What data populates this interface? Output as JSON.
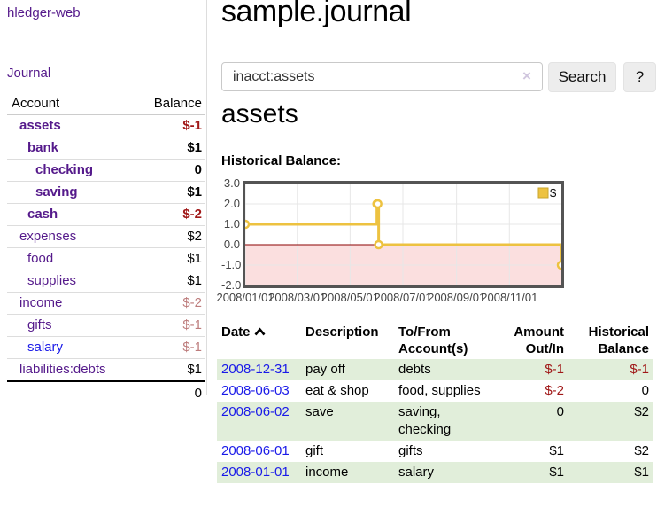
{
  "sidebar": {
    "app_title": "hledger-web",
    "journal_label": "Journal",
    "accounts_table": {
      "headers": {
        "account": "Account",
        "balance": "Balance"
      },
      "rows": [
        {
          "name": "assets",
          "indent": 1,
          "bold": true,
          "blue": false,
          "balance": "$-1",
          "balance_style": "neg-strong"
        },
        {
          "name": "bank",
          "indent": 2,
          "bold": true,
          "blue": false,
          "balance": "$1",
          "balance_style": "pos"
        },
        {
          "name": "checking",
          "indent": 3,
          "bold": true,
          "blue": false,
          "balance": "0",
          "balance_style": "pos"
        },
        {
          "name": "saving",
          "indent": 3,
          "bold": true,
          "blue": false,
          "balance": "$1",
          "balance_style": "pos"
        },
        {
          "name": "cash",
          "indent": 2,
          "bold": true,
          "blue": false,
          "balance": "$-2",
          "balance_style": "neg-strong"
        },
        {
          "name": "expenses",
          "indent": 1,
          "bold": false,
          "blue": false,
          "balance": "$2",
          "balance_style": "pos"
        },
        {
          "name": "food",
          "indent": 2,
          "bold": false,
          "blue": false,
          "balance": "$1",
          "balance_style": "pos"
        },
        {
          "name": "supplies",
          "indent": 2,
          "bold": false,
          "blue": false,
          "balance": "$1",
          "balance_style": "pos"
        },
        {
          "name": "income",
          "indent": 1,
          "bold": false,
          "blue": false,
          "balance": "$-2",
          "balance_style": "neg-soft"
        },
        {
          "name": "gifts",
          "indent": 2,
          "bold": false,
          "blue": false,
          "balance": "$-1",
          "balance_style": "neg-soft"
        },
        {
          "name": "salary",
          "indent": 2,
          "bold": false,
          "blue": true,
          "balance": "$-1",
          "balance_style": "neg-soft"
        },
        {
          "name": "liabilities:debts",
          "indent": 1,
          "bold": false,
          "blue": false,
          "balance": "$1",
          "balance_style": "pos"
        }
      ],
      "total": "0"
    }
  },
  "header": {
    "title": "sample.journal"
  },
  "search": {
    "value": "inacct:assets",
    "clear_glyph": "×",
    "button_label": "Search",
    "help_label": "?"
  },
  "account_page": {
    "heading": "assets",
    "chart_label": "Historical Balance:"
  },
  "chart_data": {
    "type": "line",
    "step": true,
    "title": "Historical Balance",
    "x": [
      "2008-01-01",
      "2008-06-01",
      "2008-06-02",
      "2008-06-03",
      "2008-12-31"
    ],
    "series": [
      {
        "name": "$",
        "values": [
          1,
          2,
          2,
          0,
          -1
        ]
      }
    ],
    "ylim": [
      -2,
      3
    ],
    "yticks": [
      "3.0",
      "2.0",
      "1.0",
      "0.0",
      "-1.0",
      "-2.0"
    ],
    "ytick_values": [
      3,
      2,
      1,
      0,
      -1,
      -2
    ],
    "xticks": [
      "2008/01/01",
      "2008/03/01",
      "2008/05/01",
      "2008/07/01",
      "2008/09/01",
      "2008/11/01"
    ],
    "xlim": [
      "2008-01-01",
      "2008-12-31"
    ],
    "grid": true,
    "legend_position": "top-right",
    "legend_label": "$",
    "colors": {
      "line": "#edc240",
      "marker_fill": "#ffffff",
      "negative_region_fill": "#fbdfdf",
      "zero_line": "#8b0000",
      "grid": "#e7e7e7",
      "border": "#545454"
    }
  },
  "register_table": {
    "headers": {
      "date": "Date",
      "description": "Description",
      "accounts": "To/From Account(s)",
      "amount": "Amount Out/In",
      "balance": "Historical Balance"
    },
    "rows": [
      {
        "date": "2008-12-31",
        "description": "pay off",
        "accounts": "debts",
        "amount": "$-1",
        "amount_neg": true,
        "balance": "$-1",
        "balance_neg": true
      },
      {
        "date": "2008-06-03",
        "description": "eat & shop",
        "accounts": "food, supplies",
        "amount": "$-2",
        "amount_neg": true,
        "balance": "0",
        "balance_neg": false
      },
      {
        "date": "2008-06-02",
        "description": "save",
        "accounts": "saving, checking",
        "amount": "0",
        "amount_neg": false,
        "balance": "$2",
        "balance_neg": false
      },
      {
        "date": "2008-06-01",
        "description": "gift",
        "accounts": "gifts",
        "amount": "$1",
        "amount_neg": false,
        "balance": "$2",
        "balance_neg": false
      },
      {
        "date": "2008-01-01",
        "description": "income",
        "accounts": "salary",
        "amount": "$1",
        "amount_neg": false,
        "balance": "$1",
        "balance_neg": false
      }
    ]
  }
}
